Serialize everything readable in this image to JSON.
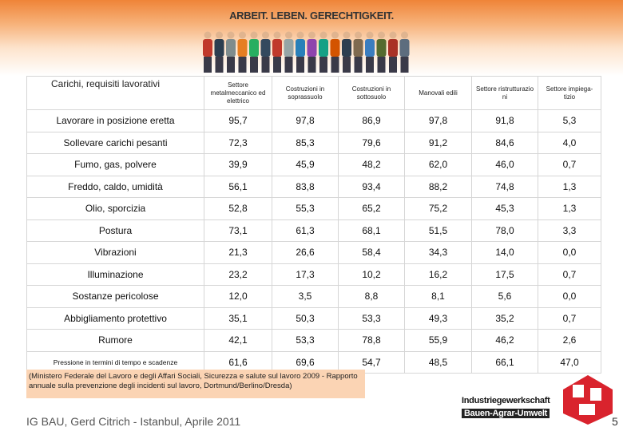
{
  "header": {
    "title": "ARBEIT. LEBEN. GERECHTIGKEIT."
  },
  "table": {
    "columns": [
      "Carichi, requisiti lavorativi",
      "Settore metalmeccanico ed elettrico",
      "Costruzioni in soprassuolo",
      "Costruzioni in sottosuolo",
      "Manovali edili",
      "Settore ristrutturazio ni",
      "Settore impiega- tizio"
    ],
    "rows": [
      [
        "Lavorare in posizione eretta",
        "95,7",
        "97,8",
        "86,9",
        "97,8",
        "91,8",
        "5,3"
      ],
      [
        "Sollevare carichi pesanti",
        "72,3",
        "85,3",
        "79,6",
        "91,2",
        "84,6",
        "4,0"
      ],
      [
        "Fumo, gas, polvere",
        "39,9",
        "45,9",
        "48,2",
        "62,0",
        "46,0",
        "0,7"
      ],
      [
        "Freddo, caldo, umidità",
        "56,1",
        "83,8",
        "93,4",
        "88,2",
        "74,8",
        "1,3"
      ],
      [
        "Olio, sporcizia",
        "52,8",
        "55,3",
        "65,2",
        "75,2",
        "45,3",
        "1,3"
      ],
      [
        "Postura",
        "73,1",
        "61,3",
        "68,1",
        "51,5",
        "78,0",
        "3,3"
      ],
      [
        "Vibrazioni",
        "21,3",
        "26,6",
        "58,4",
        "34,3",
        "14,0",
        "0,0"
      ],
      [
        "Illuminazione",
        "23,2",
        "17,3",
        "10,2",
        "16,2",
        "17,5",
        "0,7"
      ],
      [
        "Sostanze pericolose",
        "12,0",
        "3,5",
        "8,8",
        "8,1",
        "5,6",
        "0,0"
      ],
      [
        "Abbigliamento protettivo",
        "35,1",
        "50,3",
        "53,3",
        "49,3",
        "35,2",
        "0,7"
      ],
      [
        "Rumore",
        "42,1",
        "53,3",
        "78,8",
        "55,9",
        "46,2",
        "2,6"
      ],
      [
        "Pressione in termini di tempo e scadenze",
        "61,6",
        "69,6",
        "54,7",
        "48,5",
        "66,1",
        "47,0"
      ]
    ]
  },
  "source_note": "(Ministero Federale del Lavoro e degli Affari Sociali, Sicurezza e salute sul lavoro 2009 - Rapporto annuale sulla prevenzione degli incidenti sul lavoro, Dortmund/Berlino/Dresda)",
  "footer": {
    "author": "IG BAU, Gerd Citrich - Istanbul, Aprile 2011",
    "logo_line1": "Industriegewerkschaft",
    "logo_line2": "Bauen-Agrar-Umwelt",
    "page": "5"
  }
}
